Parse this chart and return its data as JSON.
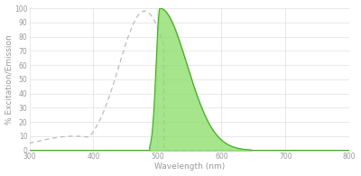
{
  "title": "",
  "xlabel": "Wavelength (nm)",
  "ylabel": "% Excitation/Emission",
  "xlim": [
    300,
    800
  ],
  "ylim": [
    0,
    100
  ],
  "xticks": [
    300,
    400,
    500,
    600,
    700,
    800
  ],
  "yticks": [
    0,
    10,
    20,
    30,
    40,
    50,
    60,
    70,
    80,
    90,
    100
  ],
  "excitation_color": "#bbbbbb",
  "emission_fill_color": "#88dd66",
  "emission_line_color": "#44aa22",
  "background_color": "#ffffff",
  "grid_color": "#e0e0e0",
  "label_fontsize": 6.5,
  "tick_fontsize": 5.5,
  "excitation_peak_nm": 480,
  "emission_peak_nm": 504
}
